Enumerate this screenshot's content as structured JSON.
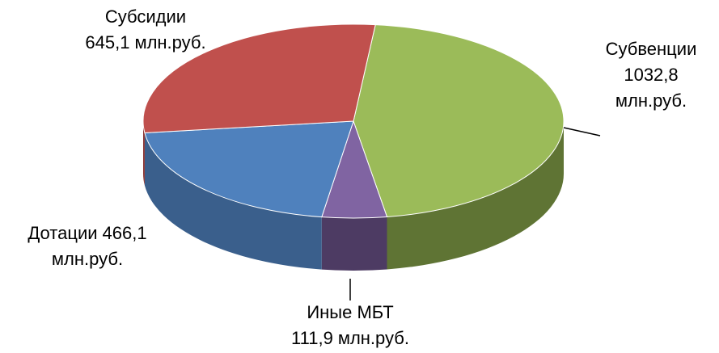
{
  "chart_data": {
    "type": "pie3d",
    "categories": [
      "Субвенции",
      "Иные МБТ",
      "Дотации",
      "Субсидии"
    ],
    "values": [
      1032.8,
      111.9,
      466.1,
      645.1
    ],
    "value_labels": [
      "1032,8",
      "111,9",
      "466,1",
      "645,1"
    ],
    "unit_label": "млн.руб.",
    "colors": [
      "#9bbb59",
      "#8064a2",
      "#4f81bd",
      "#c0504d"
    ],
    "side_colors": [
      "#5f7434",
      "#4d3b63",
      "#3a5f8c",
      "#8a3432"
    ]
  }
}
